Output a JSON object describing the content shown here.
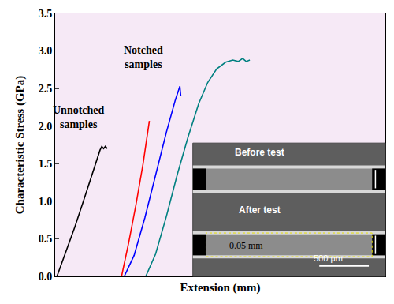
{
  "chart_data": {
    "type": "line",
    "y_label": "Characteristic Stress (GPa)",
    "x_label": "Extension (mm)",
    "xlim": [
      0,
      0.368
    ],
    "xticks": [],
    "ylim": [
      0,
      3.5
    ],
    "yticks": [
      {
        "value": 0,
        "label": "0.0"
      },
      0.5,
      {
        "value": 1,
        "label": "1.0"
      },
      1.5,
      {
        "value": 2,
        "label": "2.0"
      },
      2.5,
      {
        "value": 3,
        "label": "3.0"
      },
      3.5
    ],
    "tick_labels": "y",
    "grid": false,
    "series": [
      {
        "color": "#000000",
        "x": [
          0.002,
          0.012,
          0.022,
          0.032,
          0.04,
          0.046,
          0.05,
          0.052,
          0.054,
          0.056,
          0.058
        ],
        "values": [
          0,
          0.32,
          0.66,
          1.02,
          1.32,
          1.55,
          1.68,
          1.73,
          1.7,
          1.73,
          1.7
        ]
      },
      {
        "color": "#ff0000",
        "x": [
          0.074,
          0.082,
          0.09,
          0.098,
          0.105
        ],
        "values": [
          0,
          0.45,
          0.95,
          1.5,
          2.07
        ]
      },
      {
        "color": "#0000ff",
        "x": [
          0.077,
          0.088,
          0.1,
          0.112,
          0.124,
          0.134,
          0.139,
          0.14
        ],
        "values": [
          0,
          0.28,
          0.78,
          1.35,
          1.92,
          2.35,
          2.53,
          2.4
        ]
      },
      {
        "color": "#008080",
        "x": [
          0.101,
          0.112,
          0.124,
          0.136,
          0.148,
          0.16,
          0.17,
          0.18,
          0.19,
          0.198,
          0.204,
          0.209,
          0.213,
          0.217
        ],
        "values": [
          0,
          0.3,
          0.8,
          1.35,
          1.85,
          2.3,
          2.58,
          2.76,
          2.85,
          2.88,
          2.86,
          2.9,
          2.86,
          2.88
        ]
      }
    ],
    "annotations": [
      {
        "text": [
          "Unnotched",
          "samples"
        ],
        "x": 0.026,
        "y": 2.12
      },
      {
        "text": [
          "Notched",
          "samples"
        ],
        "x": 0.098,
        "y": 2.92
      }
    ],
    "scale_bar": {
      "label": "0.05 mm",
      "length": 0.05,
      "y": 0.32
    },
    "inset": {
      "labels": [
        "Before test",
        "After test"
      ],
      "scale_label": "500 μm"
    }
  }
}
